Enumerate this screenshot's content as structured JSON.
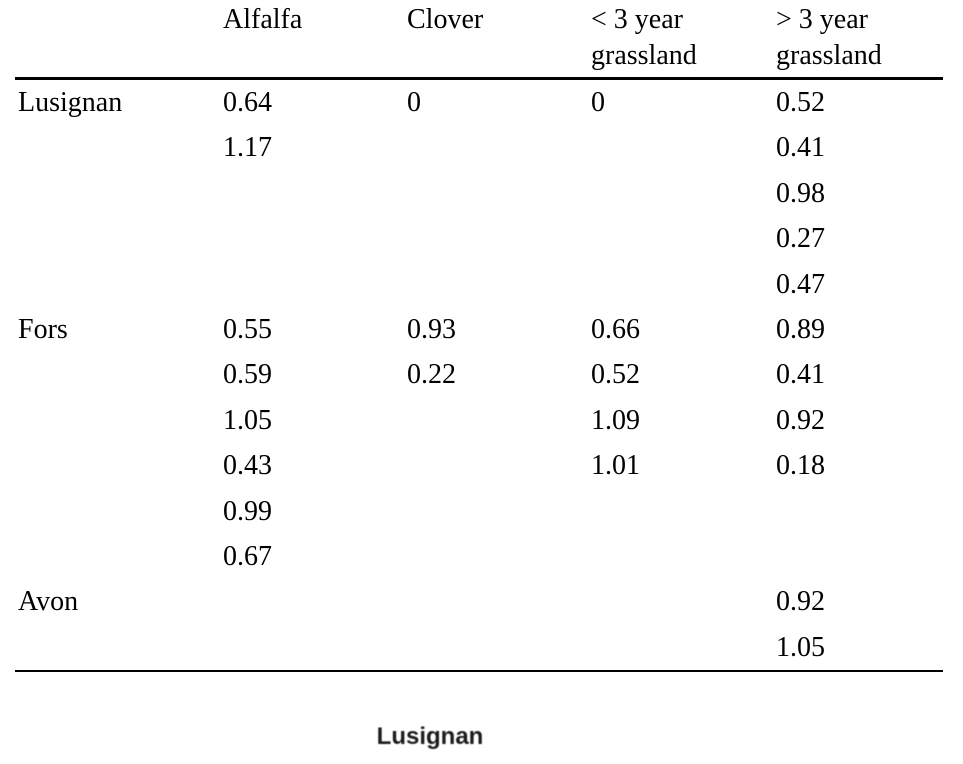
{
  "table": {
    "headers": [
      "",
      "Alfalfa",
      "Clover",
      "< 3 year\ngrassland",
      "> 3 year\ngrassland"
    ],
    "column_semantics": [
      "site",
      "alfalfa",
      "clover",
      "lt3_year_grassland",
      "gt3_year_grassland"
    ],
    "rows": [
      [
        "Lusignan",
        "0.64",
        "0",
        "0",
        "0.52"
      ],
      [
        "",
        "1.17",
        "",
        "",
        "0.41"
      ],
      [
        "",
        "",
        "",
        "",
        "0.98"
      ],
      [
        "",
        "",
        "",
        "",
        "0.27"
      ],
      [
        "",
        "",
        "",
        "",
        "0.47"
      ],
      [
        "Fors",
        "0.55",
        "0.93",
        "0.66",
        "0.89"
      ],
      [
        "",
        "0.59",
        "0.22",
        "0.52",
        "0.41"
      ],
      [
        "",
        "1.05",
        "",
        "1.09",
        "0.92"
      ],
      [
        "",
        "0.43",
        "",
        "1.01",
        "0.18"
      ],
      [
        "",
        "0.99",
        "",
        "",
        ""
      ],
      [
        "",
        "0.67",
        "",
        "",
        ""
      ],
      [
        "Avon",
        "",
        "",
        "",
        "0.92"
      ],
      [
        "",
        "",
        "",
        "",
        "1.05"
      ]
    ],
    "sites_grouped": {
      "Lusignan": {
        "alfalfa": [
          0.64,
          1.17
        ],
        "clover": [
          0
        ],
        "lt3_year_grassland": [
          0
        ],
        "gt3_year_grassland": [
          0.52,
          0.41,
          0.98,
          0.27,
          0.47
        ]
      },
      "Fors": {
        "alfalfa": [
          0.55,
          0.59,
          1.05,
          0.43,
          0.99,
          0.67
        ],
        "clover": [
          0.93,
          0.22
        ],
        "lt3_year_grassland": [
          0.66,
          0.52,
          1.09,
          1.01
        ],
        "gt3_year_grassland": [
          0.89,
          0.41,
          0.92,
          0.18
        ]
      },
      "Avon": {
        "alfalfa": [],
        "clover": [],
        "lt3_year_grassland": [],
        "gt3_year_grassland": [
          0.92,
          1.05
        ]
      }
    },
    "colors": {
      "text": "#000000",
      "rule": "#000000",
      "background": "#ffffff"
    }
  },
  "figure": {
    "label": "Lusignan",
    "label_color": "#1c1c1c"
  }
}
